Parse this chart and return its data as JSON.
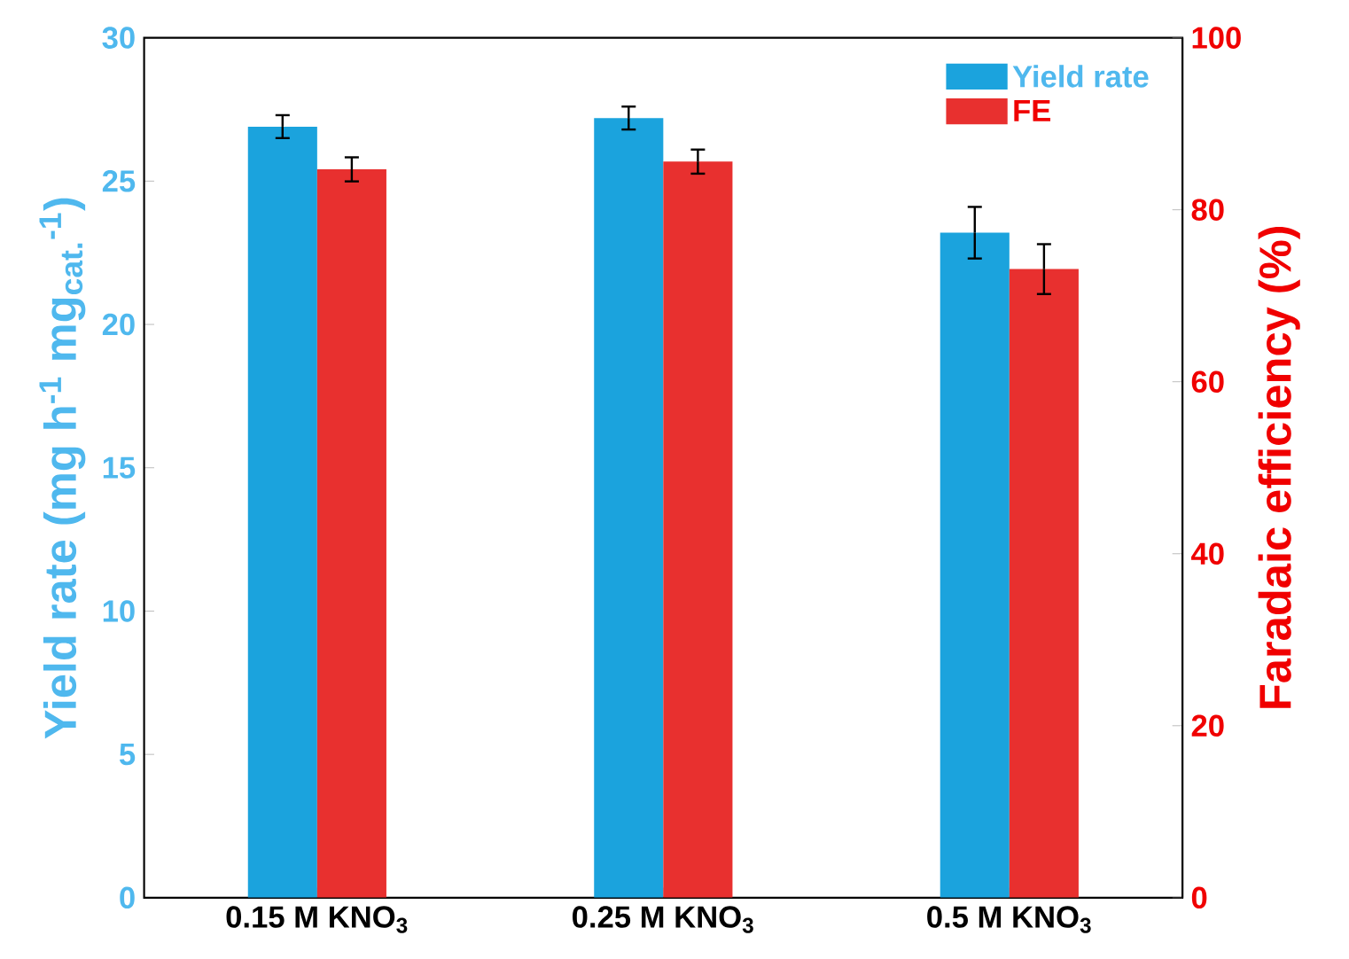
{
  "chart_data": {
    "type": "bar",
    "categories": [
      "0.15 M KNO$_{3}$",
      "0.25 M KNO$_{3}$",
      "0.5 M KNO$_{3}$"
    ],
    "ylabel": "Yield rate (mg h$^{-1}$ mg$_{cat.}$$^{-1}$)",
    "y2label": "Faradaic efficiency (%)",
    "ylim": [
      0,
      30
    ],
    "yticks": [
      0,
      5,
      10,
      15,
      20,
      25,
      30
    ],
    "y2lim": [
      0,
      100
    ],
    "y2ticks": [
      0,
      20,
      40,
      60,
      80,
      100
    ],
    "legend": "top right",
    "series": [
      {
        "name": "Yield rate",
        "color": "#1ba3dd",
        "values": [
          26.9,
          27.2,
          23.2
        ],
        "errors": [
          0.4,
          0.4,
          0.9
        ]
      },
      {
        "name": "FE",
        "color": "#e8302f",
        "axis": "y2",
        "values": [
          84.7,
          85.6,
          73.1
        ],
        "errors": [
          1.4,
          1.4,
          2.9
        ]
      }
    ]
  }
}
